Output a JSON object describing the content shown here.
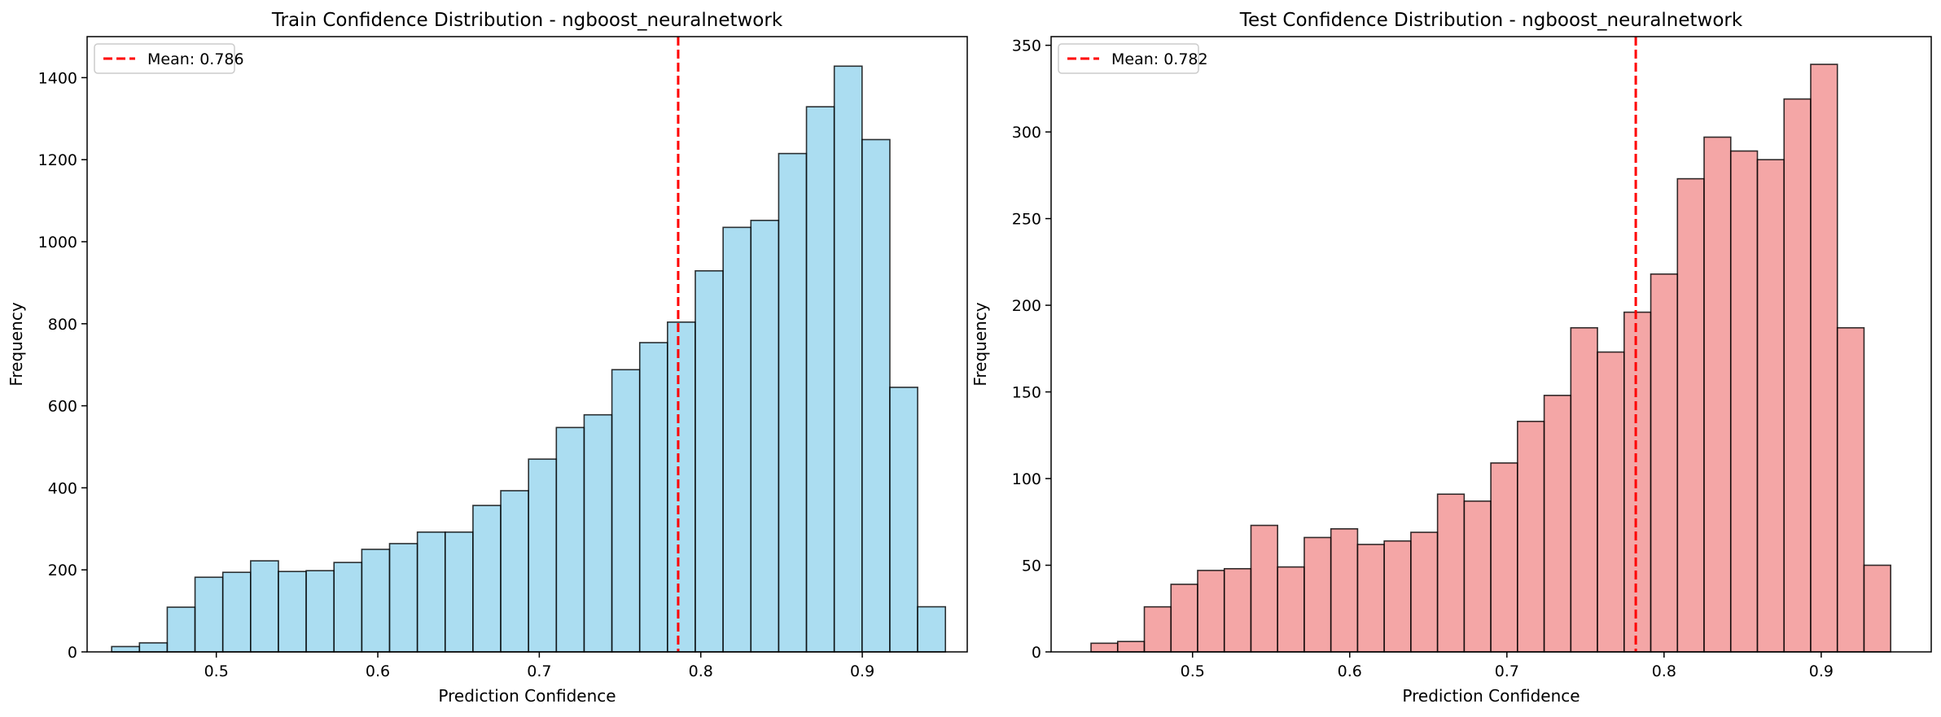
{
  "chart_data": [
    {
      "type": "bar",
      "title": "Train Confidence Distribution - ngboost_neuralnetwork",
      "xlabel": "Prediction Confidence",
      "ylabel": "Frequency",
      "xlim": [
        0.42,
        0.965
      ],
      "ylim": [
        0,
        1500
      ],
      "xticks": [
        0.5,
        0.6,
        0.7,
        0.8,
        0.9
      ],
      "xtick_labels": [
        "0.5",
        "0.6",
        "0.7",
        "0.8",
        "0.9"
      ],
      "yticks": [
        0,
        200,
        400,
        600,
        800,
        1000,
        1200,
        1400
      ],
      "ytick_labels": [
        "0",
        "200",
        "400",
        "600",
        "800",
        "1000",
        "1200",
        "1400"
      ],
      "bin_start": 0.4352,
      "bin_width": 0.01721,
      "values": [
        13,
        22,
        109,
        182,
        194,
        222,
        196,
        198,
        218,
        250,
        264,
        292,
        292,
        357,
        393,
        470,
        547,
        578,
        688,
        754,
        804,
        929,
        1035,
        1052,
        1215,
        1329,
        1428,
        1249,
        645,
        110
      ],
      "bar_color": "#87ceeb",
      "mean_value": 0.786,
      "mean_line_color": "#ff0000",
      "legend": {
        "label": "Mean: 0.786",
        "position": "top-left"
      }
    },
    {
      "type": "bar",
      "title": "Test Confidence Distribution - ngboost_neuralnetwork",
      "xlabel": "Prediction Confidence",
      "ylabel": "Frequency",
      "xlim": [
        0.41,
        0.97
      ],
      "ylim": [
        0,
        355
      ],
      "xticks": [
        0.5,
        0.6,
        0.7,
        0.8,
        0.9
      ],
      "xtick_labels": [
        "0.5",
        "0.6",
        "0.7",
        "0.8",
        "0.9"
      ],
      "yticks": [
        0,
        50,
        100,
        150,
        200,
        250,
        300,
        350
      ],
      "ytick_labels": [
        "0",
        "50",
        "100",
        "150",
        "200",
        "250",
        "300",
        "350"
      ],
      "bin_start": 0.4354,
      "bin_width": 0.01696,
      "values": [
        5,
        6,
        26,
        39,
        47,
        48,
        73,
        49,
        66,
        71,
        62,
        64,
        69,
        91,
        87,
        109,
        133,
        148,
        187,
        173,
        196,
        218,
        273,
        297,
        289,
        284,
        319,
        339,
        187,
        50
      ],
      "bar_color": "#f08080",
      "mean_value": 0.782,
      "mean_line_color": "#ff0000",
      "legend": {
        "label": "Mean: 0.782",
        "position": "top-left"
      }
    }
  ]
}
